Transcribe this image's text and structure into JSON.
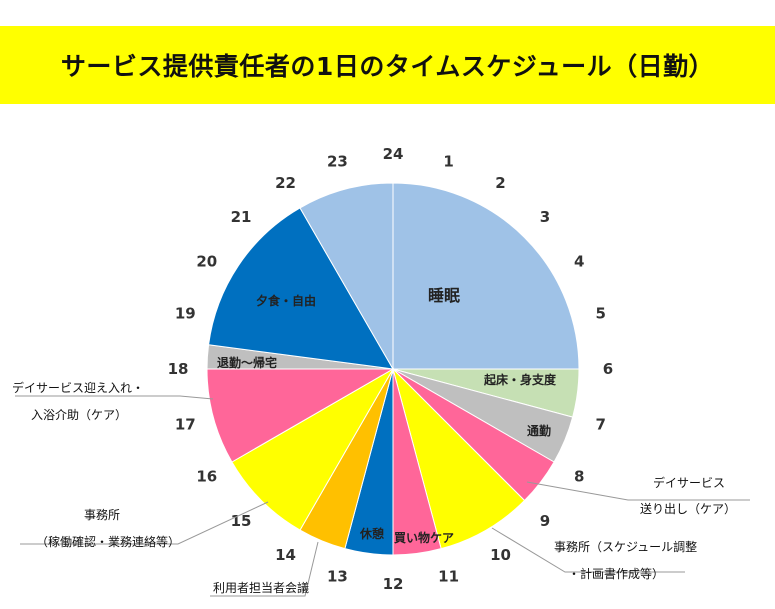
{
  "title": "サービス提供責任者の1日のタイムスケジュール（日勤）",
  "chart_data": {
    "type": "pie",
    "total_hours": 24,
    "clockwise_from_top": true,
    "segments": [
      {
        "label": "睡眠",
        "start": 0,
        "end": 6,
        "color": "#9fc2e7"
      },
      {
        "label": "起床・身支度",
        "start": 6,
        "end": 7,
        "color": "#c6e0b4"
      },
      {
        "label": "通勤",
        "start": 7,
        "end": 8,
        "color": "#bfbfbf"
      },
      {
        "label": "デイサービス送り出し（ケア）",
        "start": 8,
        "end": 9,
        "color": "#ff6699"
      },
      {
        "label": "事務所（スケジュール調整・計画書作成等）",
        "start": 9,
        "end": 11,
        "color": "#ffff00"
      },
      {
        "label": "買い物ケア",
        "start": 11,
        "end": 12,
        "color": "#ff6699"
      },
      {
        "label": "休憩",
        "start": 12,
        "end": 13,
        "color": "#0070c0"
      },
      {
        "label": "利用者担当者会議",
        "start": 13,
        "end": 14,
        "color": "#ffc000"
      },
      {
        "label": "事務所（稼働確認・業務連絡等）",
        "start": 14,
        "end": 16,
        "color": "#ffff00"
      },
      {
        "label": "デイサービス迎え入れ・入浴介助（ケア）",
        "start": 16,
        "end": 18,
        "color": "#ff6699"
      },
      {
        "label": "退勤～帰宅",
        "start": 18,
        "end": 18.5,
        "color": "#bfbfbf"
      },
      {
        "label": "夕食・自由",
        "start": 18.5,
        "end": 22,
        "color": "#0070c0"
      },
      {
        "label": "睡眠",
        "start": 22,
        "end": 24,
        "color": "#9fc2e7"
      }
    ],
    "hour_ticks": [
      "24",
      "1",
      "2",
      "3",
      "4",
      "5",
      "6",
      "7",
      "8",
      "9",
      "10",
      "11",
      "12",
      "13",
      "14",
      "15",
      "16",
      "17",
      "18",
      "19",
      "20",
      "21",
      "22",
      "23"
    ],
    "inside_labels": [
      "睡眠",
      "夕食・自由",
      "退勤～帰宅",
      "起床・身支度",
      "通勤",
      "休憩",
      "買い物ケア"
    ],
    "callouts": {
      "day_service_send": [
        "デイサービス",
        "送り出し（ケア）"
      ],
      "office_schedule": [
        "事務所（スケジュール調整",
        "・計画書作成等）"
      ],
      "day_service_receive": [
        "デイサービス迎え入れ・",
        "入浴介助（ケア）"
      ],
      "office_confirm": [
        "事務所",
        "（稼働確認・業務連絡等）"
      ],
      "meeting": [
        "利用者担当者会議"
      ]
    }
  }
}
